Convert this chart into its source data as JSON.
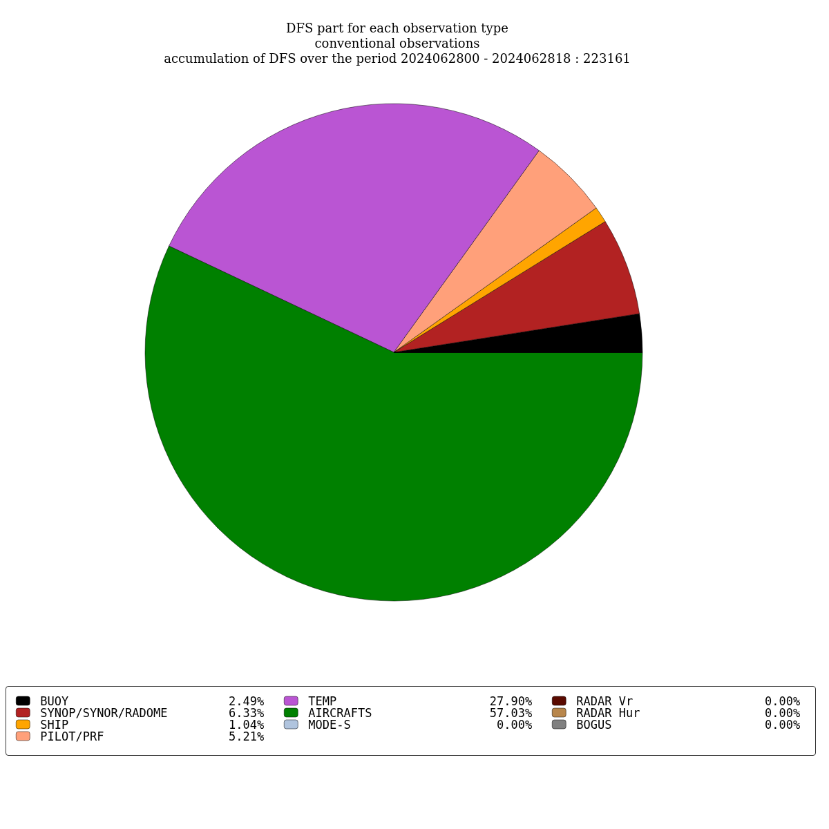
{
  "chart_data": {
    "type": "pie",
    "title": "DFS part for each observation type",
    "subtitle": "conventional observations\naccumulation of DFS over the period 2024062800 - 2024062818 : 223161",
    "categories": [
      "BUOY",
      "SYNOP/SYNOR/RADOME",
      "SHIP",
      "PILOT/PRF",
      "TEMP",
      "AIRCRAFTS",
      "MODE-S",
      "RADAR Vr",
      "RADAR Hur",
      "BOGUS"
    ],
    "values": [
      2.49,
      6.33,
      1.04,
      5.21,
      27.9,
      57.03,
      0.0,
      0.0,
      0.0,
      0.0
    ],
    "value_labels": [
      "2.49%",
      "6.33%",
      "1.04%",
      "5.21%",
      "27.90%",
      "57.03%",
      "0.00%",
      "0.00%",
      "0.00%",
      "0.00%"
    ],
    "colors": [
      "#000000",
      "#b22222",
      "#ffa500",
      "#ffa07a",
      "#ba55d3",
      "#008000",
      "#b0c4de",
      "#5a0a00",
      "#b8864b",
      "#808080"
    ],
    "legend": "bottom"
  }
}
